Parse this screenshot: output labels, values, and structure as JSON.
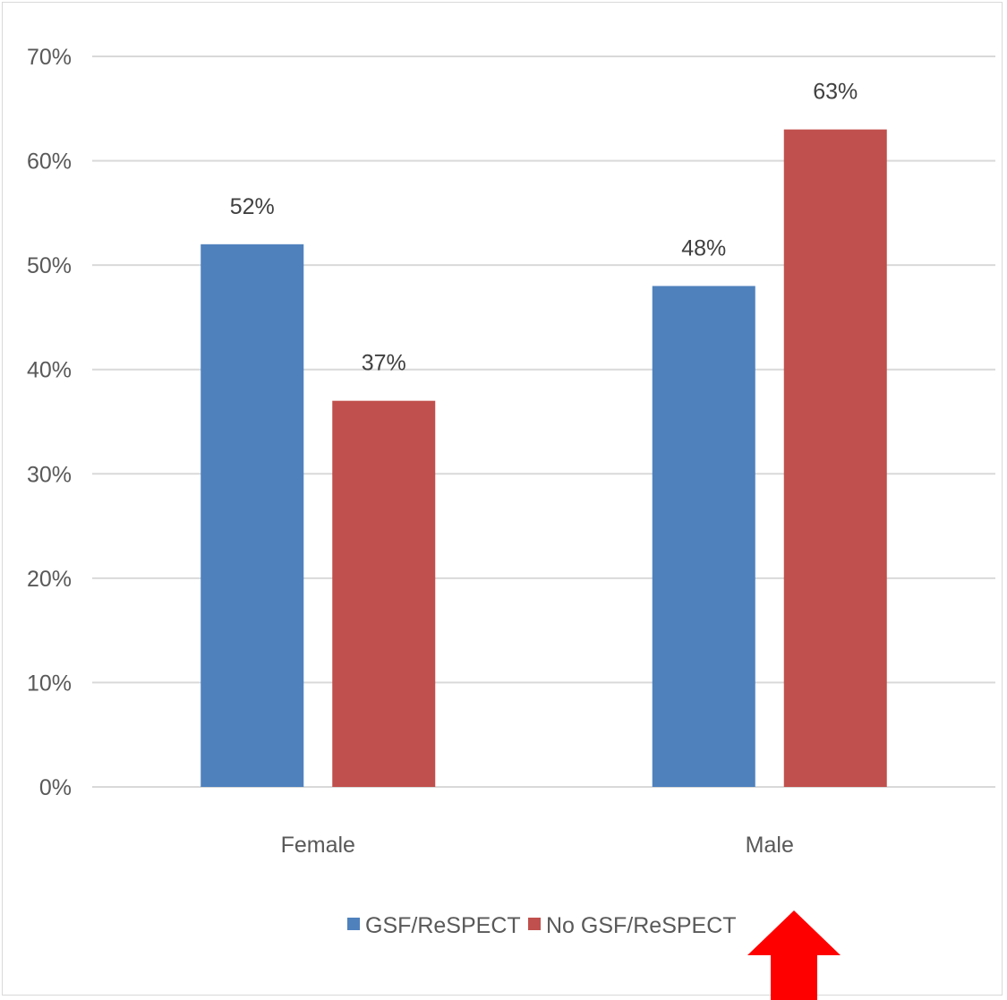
{
  "chart_data": {
    "type": "bar",
    "categories": [
      "Female",
      "Male"
    ],
    "series": [
      {
        "name": "GSF/ReSPECT",
        "values": [
          52,
          48
        ],
        "color": "#4f81bd",
        "labels": [
          "52%",
          "48%"
        ]
      },
      {
        "name": "No GSF/ReSPECT",
        "values": [
          37,
          63
        ],
        "color": "#c0504d",
        "labels": [
          "37%",
          "63%"
        ]
      }
    ],
    "y_ticks": [
      "0%",
      "10%",
      "20%",
      "30%",
      "40%",
      "50%",
      "60%",
      "70%"
    ],
    "ylim": [
      0,
      70
    ],
    "grid": true,
    "legend_position": "bottom"
  },
  "annotation": {
    "type": "arrow",
    "direction": "up",
    "color": "#ff0000",
    "points_to": "Male"
  }
}
